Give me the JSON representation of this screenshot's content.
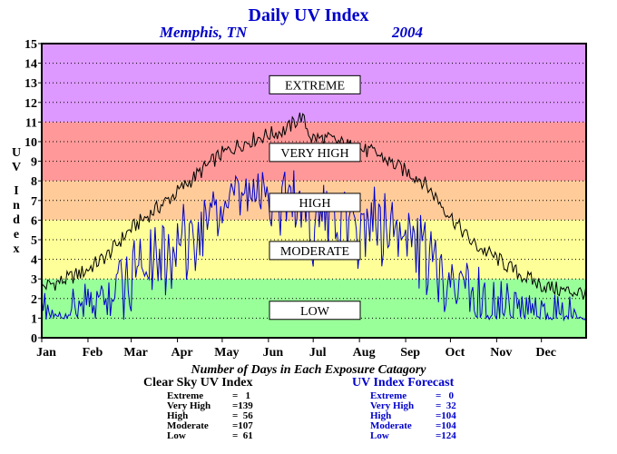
{
  "chart_data": {
    "type": "line",
    "title": "Daily UV Index",
    "location": "Memphis, TN",
    "year": "2004",
    "ylabel": "UV Index",
    "ylim": [
      0,
      15
    ],
    "y_ticks": [
      "0",
      "1",
      "2",
      "3",
      "4",
      "5",
      "6",
      "7",
      "8",
      "9",
      "10",
      "11",
      "12",
      "13",
      "14",
      "15"
    ],
    "x_ticks": [
      "Jan",
      "Feb",
      "Mar",
      "Apr",
      "May",
      "Jun",
      "Jul",
      "Aug",
      "Sep",
      "Oct",
      "Nov",
      "Dec"
    ],
    "grid": true,
    "bands": [
      {
        "label": "LOW",
        "range": [
          0,
          3
        ],
        "color": "#99ff99"
      },
      {
        "label": "MODERATE",
        "range": [
          3,
          6
        ],
        "color": "#ffff99"
      },
      {
        "label": "HIGH",
        "range": [
          6,
          8
        ],
        "color": "#ffcc99"
      },
      {
        "label": "VERY HIGH",
        "range": [
          8,
          11
        ],
        "color": "#ff9999"
      },
      {
        "label": "EXTREME",
        "range": [
          11,
          15
        ],
        "color": "#dd99ff"
      }
    ],
    "series": [
      {
        "color": "#000000",
        "x": [
          1,
          15,
          30,
          45,
          60,
          75,
          90,
          105,
          120,
          135,
          150,
          165,
          175,
          182,
          195,
          210,
          225,
          240,
          255,
          265,
          275,
          290,
          305,
          320,
          335,
          350,
          366
        ],
        "values": [
          2.6,
          2.9,
          3.4,
          4.2,
          5.5,
          6.4,
          7.3,
          8.3,
          9.3,
          9.9,
          10.3,
          10.6,
          11.3,
          10.2,
          10.1,
          9.7,
          9.4,
          8.7,
          8.1,
          7.2,
          6.2,
          4.8,
          4.1,
          3.3,
          2.7,
          2.4,
          2.3
        ]
      },
      {
        "color": "#0000cc",
        "x": [
          1,
          15,
          30,
          45,
          60,
          75,
          90,
          105,
          120,
          135,
          150,
          165,
          175,
          182,
          195,
          210,
          225,
          240,
          255,
          265,
          275,
          290,
          305,
          320,
          335,
          350,
          366
        ],
        "values": [
          2.1,
          1.9,
          2.4,
          3.2,
          4.4,
          5.3,
          5.6,
          6.9,
          7.4,
          7.7,
          8.1,
          8.3,
          8.0,
          7.0,
          7.4,
          6.8,
          7.2,
          6.6,
          5.7,
          4.9,
          4.3,
          3.5,
          2.9,
          2.1,
          1.8,
          1.6,
          1.6
        ]
      }
    ]
  },
  "labels": {
    "caption": "Number of Days in Each Exposure Catagory",
    "clear_sky_title": "Clear Sky UV Index",
    "forecast_title": "UV Index Forecast"
  },
  "clear_sky": [
    {
      "label": "Extreme",
      "value": "=   1"
    },
    {
      "label": "Very High",
      "value": "=139"
    },
    {
      "label": "High",
      "value": "=  56"
    },
    {
      "label": "Moderate",
      "value": "=107"
    },
    {
      "label": "Low",
      "value": "=  61"
    }
  ],
  "forecast": [
    {
      "label": "Extreme",
      "value": "=   0"
    },
    {
      "label": "Very High",
      "value": "=  32"
    },
    {
      "label": "High",
      "value": "=104"
    },
    {
      "label": "Moderate",
      "value": "=104"
    },
    {
      "label": "Low",
      "value": "=124"
    }
  ]
}
